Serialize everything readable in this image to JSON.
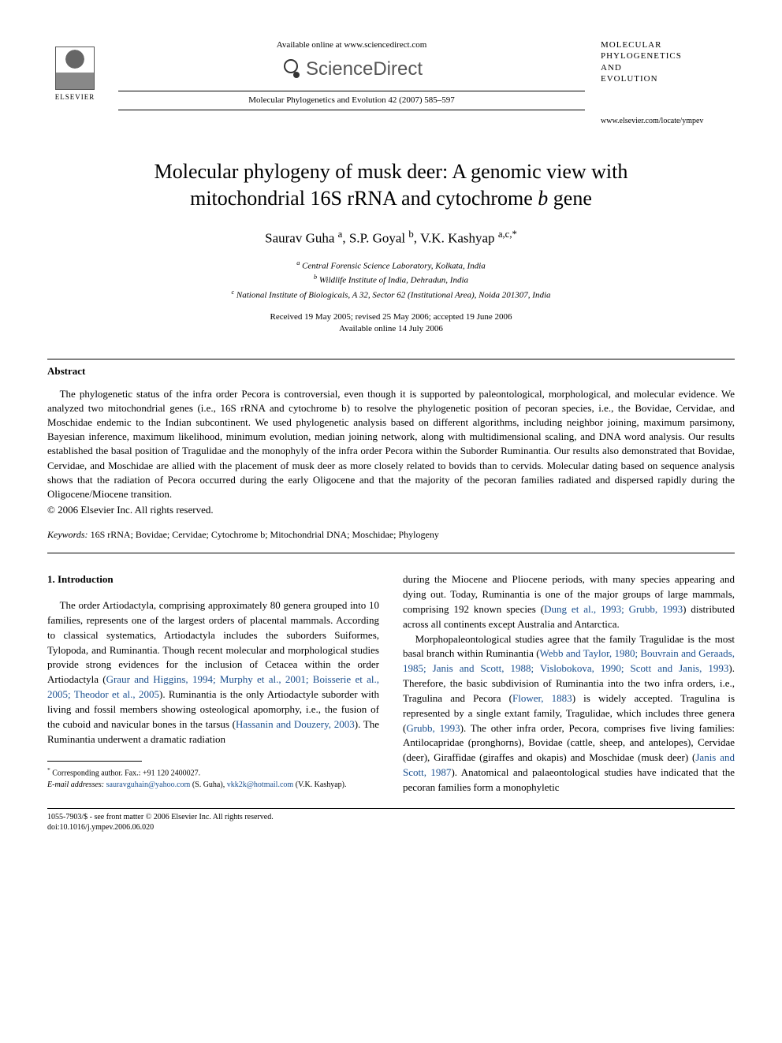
{
  "header": {
    "publisher": "ELSEVIER",
    "available_online": "Available online at www.sciencedirect.com",
    "sciencedirect": "ScienceDirect",
    "journal_ref": "Molecular Phylogenetics and Evolution 42 (2007) 585–597",
    "journal_name_lines": [
      "MOLECULAR",
      "PHYLOGENETICS",
      "AND",
      "EVOLUTION"
    ],
    "journal_url": "www.elsevier.com/locate/ympev"
  },
  "title_line1": "Molecular phylogeny of musk deer: A genomic view with",
  "title_line2": "mitochondrial 16S rRNA and cytochrome ",
  "title_line2_ital": "b",
  "title_line2_end": " gene",
  "authors_html": "Saurav Guha <sup>a</sup>, S.P. Goyal <sup>b</sup>, V.K. Kashyap <sup>a,c,*</sup>",
  "affiliations": {
    "a": "Central Forensic Science Laboratory, Kolkata, India",
    "b": "Wildlife Institute of India, Dehradun, India",
    "c": "National Institute of Biologicals, A 32, Sector 62 (Institutional Area), Noida 201307, India"
  },
  "dates": {
    "received": "Received 19 May 2005; revised 25 May 2006; accepted 19 June 2006",
    "online": "Available online 14 July 2006"
  },
  "abstract": {
    "heading": "Abstract",
    "text": "The phylogenetic status of the infra order Pecora is controversial, even though it is supported by paleontological, morphological, and molecular evidence. We analyzed two mitochondrial genes (i.e., 16S rRNA and cytochrome b) to resolve the phylogenetic position of pecoran species, i.e., the Bovidae, Cervidae, and Moschidae endemic to the Indian subcontinent. We used phylogenetic analysis based on different algorithms, including neighbor joining, maximum parsimony, Bayesian inference, maximum likelihood, minimum evolution, median joining network, along with multidimensional scaling, and DNA word analysis. Our results established the basal position of Tragulidae and the monophyly of the infra order Pecora within the Suborder Ruminantia. Our results also demonstrated that Bovidae, Cervidae, and Moschidae are allied with the placement of musk deer as more closely related to bovids than to cervids. Molecular dating based on sequence analysis shows that the radiation of Pecora occurred during the early Oligocene and that the majority of the pecoran families radiated and dispersed rapidly during the Oligocene/Miocene transition.",
    "copyright": "© 2006 Elsevier Inc. All rights reserved."
  },
  "keywords": {
    "label": "Keywords:",
    "text": " 16S rRNA; Bovidae; Cervidae; Cytochrome b; Mitochondrial DNA; Moschidae; Phylogeny"
  },
  "intro": {
    "heading": "1. Introduction",
    "col1_pre": "The order Artiodactyla, comprising approximately 80 genera grouped into 10 families, represents one of the largest orders of placental mammals. According to classical systematics, Artiodactyla includes the suborders Suiformes, Tylopoda, and Ruminantia. Though recent molecular and morphological studies provide strong evidences for the inclusion of Cetacea within the order Artiodactyla (",
    "col1_cite1": "Graur and Higgins, 1994; Murphy et al., 2001; Boisserie et al., 2005; Theodor et al., 2005",
    "col1_mid1": "). Ruminantia is the only Artiodactyle suborder with living and fossil members showing osteological apomorphy, i.e., the fusion of the cuboid and navicular bones in the tarsus (",
    "col1_cite2": "Hassanin and Douzery, 2003",
    "col1_post1": "). The Ruminantia underwent a dramatic radiation",
    "col2_pre": "during the Miocene and Pliocene periods, with many species appearing and dying out. Today, Ruminantia is one of the major groups of large mammals, comprising 192 known species (",
    "col2_cite1": "Dung et al., 1993; Grubb, 1993",
    "col2_post1": ") distributed across all continents except Australia and Antarctica.",
    "col2_p2_pre": "Morphopaleontological studies agree that the family Tragulidae is the most basal branch within Ruminantia (",
    "col2_p2_cite1": "Webb and Taylor, 1980; Bouvrain and Geraads, 1985; Janis and Scott, 1988; Vislobokova, 1990; Scott and Janis, 1993",
    "col2_p2_mid1": "). Therefore, the basic subdivision of Ruminantia into the two infra orders, i.e., Tragulina and Pecora (",
    "col2_p2_cite2": "Flower, 1883",
    "col2_p2_mid2": ") is widely accepted. Tragulina is represented by a single extant family, Tragulidae, which includes three genera (",
    "col2_p2_cite3": "Grubb, 1993",
    "col2_p2_mid3": "). The other infra order, Pecora, comprises five living families: Antilocapridae (pronghorns), Bovidae (cattle, sheep, and antelopes), Cervidae (deer), Giraffidae (giraffes and okapis) and Moschidae (musk deer) (",
    "col2_p2_cite4": "Janis and Scott, 1987",
    "col2_p2_post": "). Anatomical and palaeontological studies have indicated that the pecoran families form a monophyletic"
  },
  "footnotes": {
    "corresponding": "Corresponding author. Fax.: +91 120 2400027.",
    "email_label": "E-mail addresses:",
    "email1": "sauravguhain@yahoo.com",
    "email1_name": " (S. Guha), ",
    "email2": "vkk2k@hotmail.com",
    "email2_name": " (V.K. Kashyap)."
  },
  "footer": {
    "issn": "1055-7903/$ - see front matter © 2006 Elsevier Inc. All rights reserved.",
    "doi": "doi:10.1016/j.ympev.2006.06.020"
  },
  "colors": {
    "citation": "#1a4f8f",
    "text": "#000000",
    "background": "#ffffff"
  }
}
